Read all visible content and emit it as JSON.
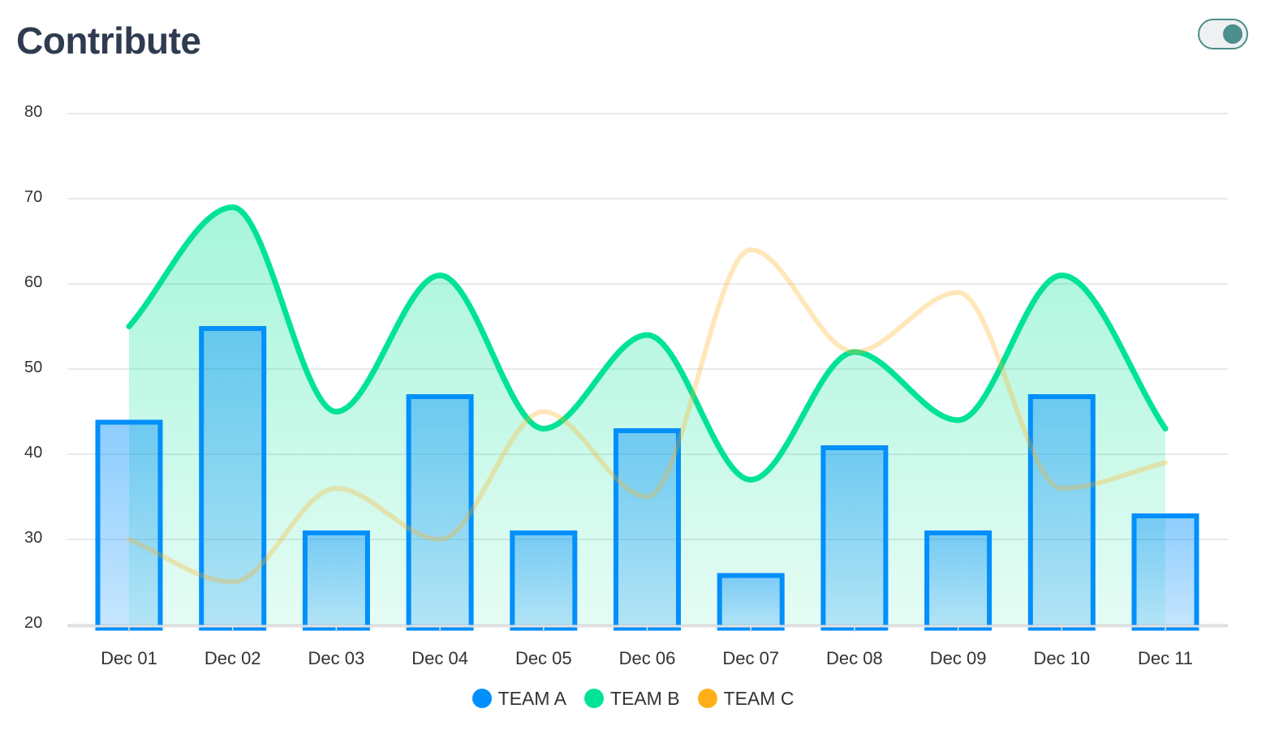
{
  "card": {
    "title": "Contribute",
    "toggle_on": true
  },
  "colors": {
    "team_a": "#008ffb",
    "team_b": "#00e396",
    "team_c": "#feb019",
    "toggle": "#4b8f8c",
    "title": "#2f3b50"
  },
  "chart_data": {
    "type": "bar",
    "title": "",
    "xlabel": "",
    "ylabel": "",
    "categories": [
      "Dec 01",
      "Dec 02",
      "Dec 03",
      "Dec 04",
      "Dec 05",
      "Dec 06",
      "Dec 07",
      "Dec 08",
      "Dec 09",
      "Dec 10",
      "Dec 11"
    ],
    "ylim": [
      20,
      80
    ],
    "yticks": [
      "20",
      "30",
      "40",
      "50",
      "60",
      "70",
      "80"
    ],
    "grid": true,
    "legend_position": "bottom",
    "series": [
      {
        "name": "TEAM A",
        "type": "bar",
        "color": "#008ffb",
        "values": [
          44,
          55,
          31,
          47,
          31,
          43,
          26,
          41,
          31,
          47,
          33
        ]
      },
      {
        "name": "TEAM B",
        "type": "area",
        "curve": "smooth",
        "color": "#00e396",
        "values": [
          55,
          69,
          45,
          61,
          43,
          54,
          37,
          52,
          44,
          61,
          43
        ]
      },
      {
        "name": "TEAM C",
        "type": "line",
        "curve": "smooth",
        "color": "#feb019",
        "values": [
          30,
          25,
          36,
          30,
          45,
          35,
          64,
          52,
          59,
          36,
          39
        ]
      }
    ]
  }
}
